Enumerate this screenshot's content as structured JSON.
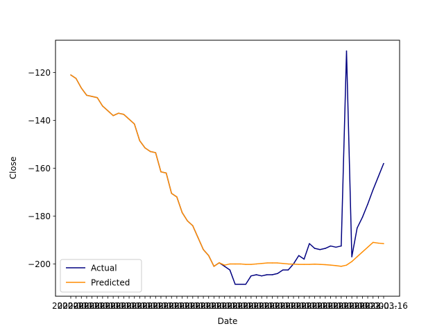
{
  "chart_data": {
    "type": "line",
    "title": "",
    "xlabel": "Date",
    "ylabel": "Close",
    "ylim": [
      -213.5,
      -106.5
    ],
    "y_ticks": [
      -200,
      -180,
      -160,
      -140,
      -120
    ],
    "y_tick_labels": [
      "−200",
      "−180",
      "−160",
      "−140",
      "−120"
    ],
    "x_tick_text": "2022-0...",
    "x_tick_last_text": "2023-03-16",
    "grid": false,
    "legend_position": "lower left",
    "series": [
      {
        "name": "Actual",
        "color": "#000080",
        "values": [
          -121,
          -122.5,
          -126.5,
          -129.5,
          -130,
          -130.5,
          -134,
          -136,
          -138,
          -137,
          -137.5,
          -139.5,
          -141.5,
          -148.5,
          -151.5,
          -153,
          -153.5,
          -161.5,
          -162,
          -170.5,
          -172,
          -178.5,
          -182,
          -184,
          -189,
          -194,
          -196.5,
          -201,
          -199.5,
          -201,
          -202.5,
          -208.5,
          -208.5,
          -208.5,
          -205,
          -204.5,
          -205,
          -204.5,
          -204.5,
          -204,
          -202.5,
          -202.5,
          -200,
          -196.5,
          -198,
          -191.5,
          -193.5,
          -194,
          -193.5,
          -192.5,
          -193,
          -192.5,
          -111,
          -197,
          -185,
          -180.5,
          -175,
          -169,
          -163.5,
          -158
        ]
      },
      {
        "name": "Predicted",
        "color": "#ff8c00",
        "values": [
          -121,
          -122.5,
          -126.5,
          -129.5,
          -130,
          -130.5,
          -134,
          -136,
          -138,
          -137,
          -137.5,
          -139.5,
          -141.5,
          -148.5,
          -151.5,
          -153,
          -153.5,
          -161.5,
          -162,
          -170.5,
          -172,
          -178.5,
          -182,
          -184,
          -189,
          -194,
          -196.5,
          -201,
          -199.5,
          -200.5,
          -200,
          -200,
          -200,
          -200.2,
          -200.2,
          -200,
          -199.8,
          -199.6,
          -199.6,
          -199.6,
          -199.8,
          -200,
          -200.1,
          -200.2,
          -200.2,
          -200.2,
          -200.1,
          -200.2,
          -200.3,
          -200.5,
          -200.7,
          -201,
          -200.5,
          -199,
          -197,
          -195,
          -193,
          -191,
          -191.3,
          -191.5
        ]
      }
    ]
  }
}
